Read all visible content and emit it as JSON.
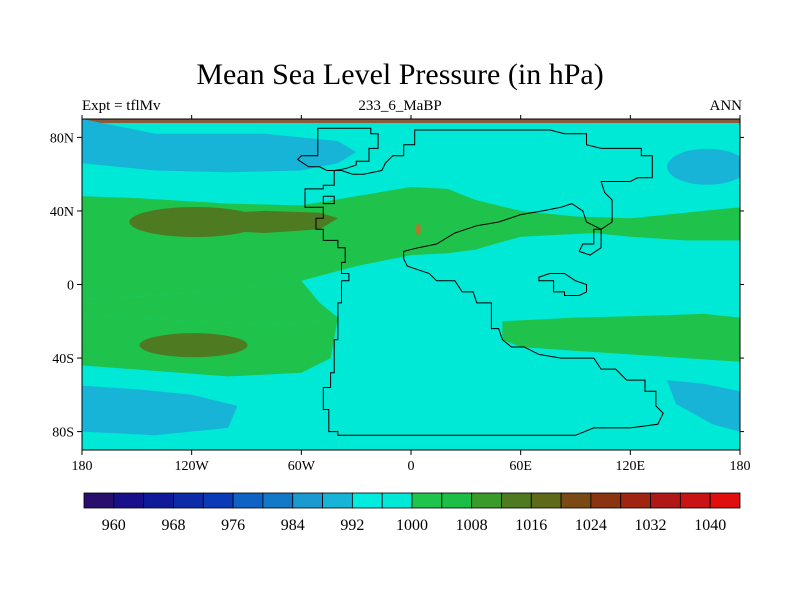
{
  "chart_data": {
    "type": "heatmap",
    "title": "Mean Sea Level Pressure (in hPa)",
    "subtitle_left": "Expt = tflMv",
    "subtitle_center": "233_6_MaBP",
    "subtitle_right": "ANN",
    "x_ticks": [
      "180",
      "120W",
      "60W",
      "0",
      "60E",
      "120E",
      "180"
    ],
    "x_tick_values": [
      -180,
      -120,
      -60,
      0,
      60,
      120,
      180
    ],
    "y_ticks": [
      "80N",
      "40N",
      "0",
      "40S",
      "80S"
    ],
    "y_tick_values": [
      80,
      40,
      0,
      -40,
      -80
    ],
    "xlim": [
      -180,
      180
    ],
    "ylim": [
      -90,
      90
    ],
    "units": "hPa",
    "colorbar": {
      "levels": [
        960,
        964,
        968,
        972,
        976,
        980,
        984,
        988,
        992,
        996,
        1000,
        1004,
        1008,
        1012,
        1016,
        1020,
        1024,
        1028,
        1032,
        1036,
        1040
      ],
      "labels": [
        "960",
        "968",
        "976",
        "984",
        "992",
        "1000",
        "1008",
        "1016",
        "1024",
        "1032",
        "1040"
      ],
      "colors": [
        "#2a0e6e",
        "#1a0f8a",
        "#0f1a9a",
        "#0d2aa8",
        "#0a3ab8",
        "#0e63c4",
        "#1278c8",
        "#1a9ad0",
        "#18b4d8",
        "#00ecdf",
        "#00e8d6",
        "#1ec44c",
        "#1cbe46",
        "#3a9a2a",
        "#4e7a22",
        "#5e6a1a",
        "#7a4a14",
        "#8a3412",
        "#a02412",
        "#b01818",
        "#c81414",
        "#e00e0e"
      ]
    },
    "fields": {
      "background_level": 1002,
      "regions": [
        {
          "name": "north-pacific-low",
          "level": 994
        },
        {
          "name": "north-atlantic-low",
          "level": 994
        },
        {
          "name": "southern-ocean-low-west",
          "level": 994
        },
        {
          "name": "southern-ocean-low-east",
          "level": 994
        },
        {
          "name": "subtropical-high-band-north",
          "level": 1010
        },
        {
          "name": "subtropical-high-band-south",
          "level": 1010
        },
        {
          "name": "north-subtropical-high-center",
          "level": 1018
        },
        {
          "name": "south-subtropical-high-center",
          "level": 1018
        }
      ]
    }
  },
  "colors": {
    "ocean_base": "#00e8d6",
    "low": "#18b4d8",
    "mid_high": "#1fc24a",
    "high": "#4e7a22",
    "frame_top": "#8a5a3a",
    "coast": "#000000"
  }
}
